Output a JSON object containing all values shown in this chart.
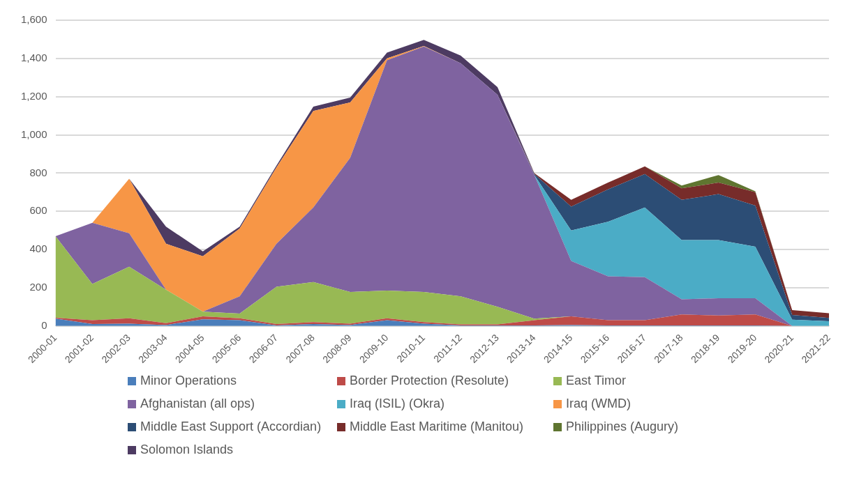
{
  "chart_data": {
    "type": "area",
    "stacked": true,
    "categories": [
      "2000-01",
      "2001-02",
      "2002-03",
      "2003-04",
      "2004-05",
      "2005-06",
      "2006-07",
      "2007-08",
      "2008-09",
      "2009-10",
      "2010-11",
      "2011-12",
      "2012-13",
      "2013-14",
      "2014-15",
      "2015-16",
      "2016-17",
      "2017-18",
      "2018-19",
      "2019-20",
      "2020-21",
      "2021-22"
    ],
    "ylim": [
      0,
      1600
    ],
    "yticks": [
      0,
      {
        "value": 200,
        "label": "200"
      },
      {
        "value": 400,
        "label": "400"
      },
      {
        "value": 600,
        "label": "600"
      },
      {
        "value": 800,
        "label": "800"
      },
      {
        "value": 1000,
        "label": "1,000"
      },
      {
        "value": 1200,
        "label": "1,200"
      },
      {
        "value": 1400,
        "label": "1,400"
      },
      {
        "value": 1600,
        "label": "1,600"
      }
    ],
    "grid": "y",
    "legend": "bottom",
    "series": [
      {
        "name": "Minor Operations",
        "color": "#4a7ebb",
        "values": [
          38,
          10,
          12,
          5,
          35,
          30,
          3,
          10,
          5,
          30,
          12,
          3,
          3,
          3,
          5,
          3,
          3,
          3,
          3,
          3,
          0,
          0
        ]
      },
      {
        "name": "Border Protection (Resolute)",
        "color": "#be4b48",
        "values": [
          5,
          20,
          28,
          10,
          15,
          10,
          7,
          10,
          7,
          10,
          8,
          5,
          5,
          27,
          45,
          27,
          27,
          57,
          52,
          57,
          0,
          0
        ]
      },
      {
        "name": "East Timor",
        "color": "#98b954",
        "values": [
          427,
          190,
          270,
          175,
          25,
          25,
          195,
          210,
          166,
          145,
          158,
          147,
          92,
          8,
          0,
          null,
          null,
          null,
          null,
          null,
          null,
          null
        ]
      },
      {
        "name": "Afghanistan (all ops)",
        "color": "#7f63a0",
        "values": [
          0,
          320,
          175,
          0,
          0,
          90,
          225,
          390,
          702,
          1205,
          1284,
          1220,
          1110,
          752,
          290,
          230,
          225,
          80,
          90,
          85,
          0,
          null
        ]
      },
      {
        "name": "Iraq (ISIL) (Okra)",
        "color": "#4bacc6",
        "values": [
          null,
          null,
          null,
          null,
          null,
          null,
          null,
          null,
          null,
          null,
          null,
          null,
          null,
          0,
          160,
          285,
          365,
          310,
          305,
          270,
          33,
          25
        ]
      },
      {
        "name": "Iraq (WMD)",
        "color": "#f79646",
        "values": [
          null,
          0,
          285,
          240,
          290,
          355,
          400,
          505,
          290,
          10,
          3,
          0,
          null,
          null,
          null,
          null,
          null,
          null,
          null,
          null,
          null,
          null
        ]
      },
      {
        "name": "Middle East Support (Accordian)",
        "color": "#2c4d75",
        "values": [
          null,
          null,
          null,
          null,
          null,
          null,
          null,
          null,
          null,
          null,
          null,
          null,
          0,
          5,
          125,
          170,
          175,
          210,
          240,
          215,
          25,
          17
        ]
      },
      {
        "name": "Middle East Maritime (Manitou)",
        "color": "#772c2a",
        "values": [
          null,
          null,
          null,
          null,
          null,
          null,
          null,
          null,
          null,
          null,
          null,
          null,
          0,
          5,
          35,
          35,
          40,
          60,
          60,
          70,
          25,
          25
        ]
      },
      {
        "name": "Philippines (Augury)",
        "color": "#5f7530",
        "values": [
          null,
          null,
          null,
          null,
          null,
          null,
          null,
          null,
          null,
          null,
          null,
          null,
          null,
          null,
          null,
          null,
          0,
          15,
          40,
          5,
          0,
          null
        ]
      },
      {
        "name": "Solomon Islands",
        "color": "#4d3b62",
        "values": [
          null,
          null,
          0,
          90,
          25,
          10,
          10,
          23,
          25,
          30,
          32,
          40,
          40,
          0,
          null,
          null,
          null,
          null,
          null,
          null,
          null,
          null
        ]
      }
    ]
  }
}
